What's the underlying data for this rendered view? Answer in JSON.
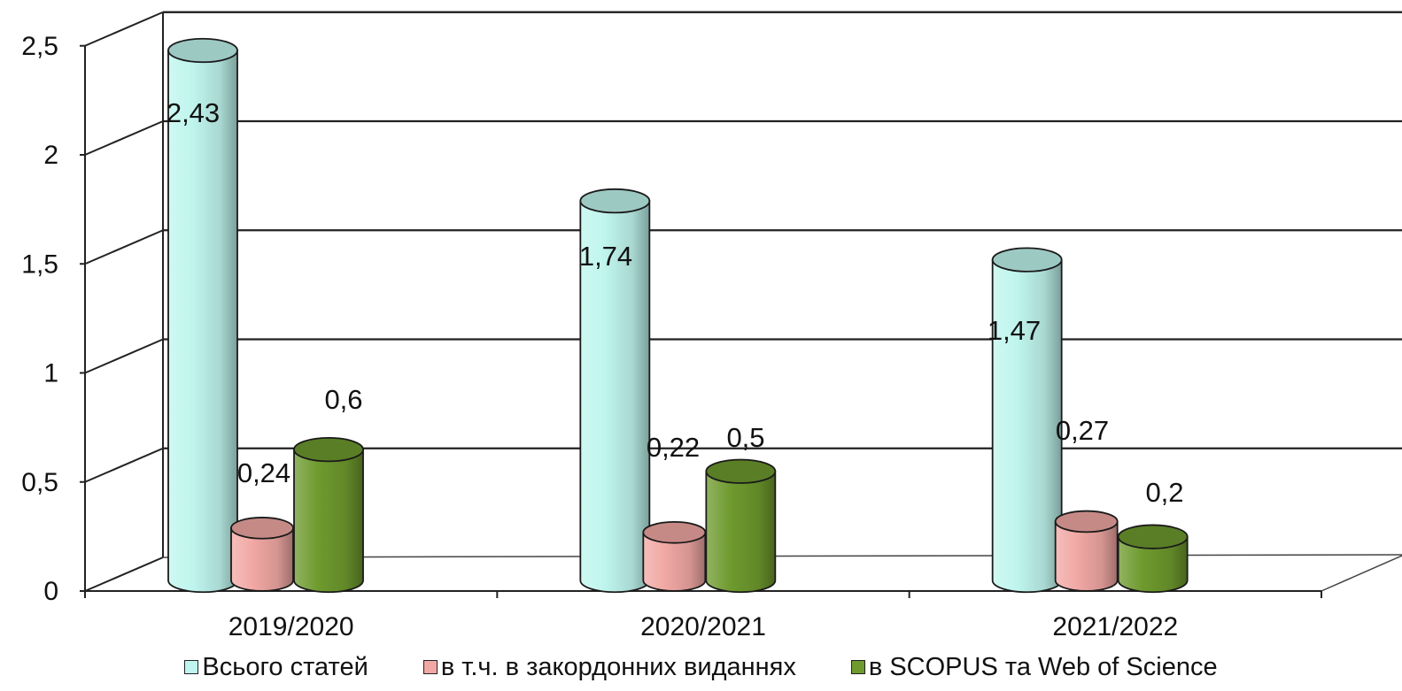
{
  "chart_data": {
    "type": "bar",
    "style": "3d-cylinder",
    "categories": [
      "2019/2020",
      "2020/2021",
      "2021/2022"
    ],
    "series": [
      {
        "name": "Всього статей",
        "values": [
          2.43,
          1.74,
          1.47
        ],
        "labels": [
          "2,43",
          "1,74",
          "1,47"
        ],
        "color": "#bff5ee"
      },
      {
        "name": "в т.ч. в закордонних виданнях",
        "values": [
          0.24,
          0.22,
          0.27
        ],
        "labels": [
          "0,24",
          "0,22",
          "0,27"
        ],
        "color": "#f1a8a4"
      },
      {
        "name": "в SCOPUS та Web of Science",
        "values": [
          0.6,
          0.5,
          0.2
        ],
        "labels": [
          "0,6",
          "0,5",
          "0,2"
        ],
        "color": "#6e9a2e"
      }
    ],
    "yticks": [
      0,
      0.5,
      1,
      1.5,
      2,
      2.5
    ],
    "ytick_labels": [
      "0",
      "0,5",
      "1",
      "1,5",
      "2",
      "2,5"
    ],
    "ylim": [
      0,
      2.5
    ],
    "grid": true,
    "legend": "bottom",
    "title": "",
    "xlabel": "",
    "ylabel": ""
  }
}
